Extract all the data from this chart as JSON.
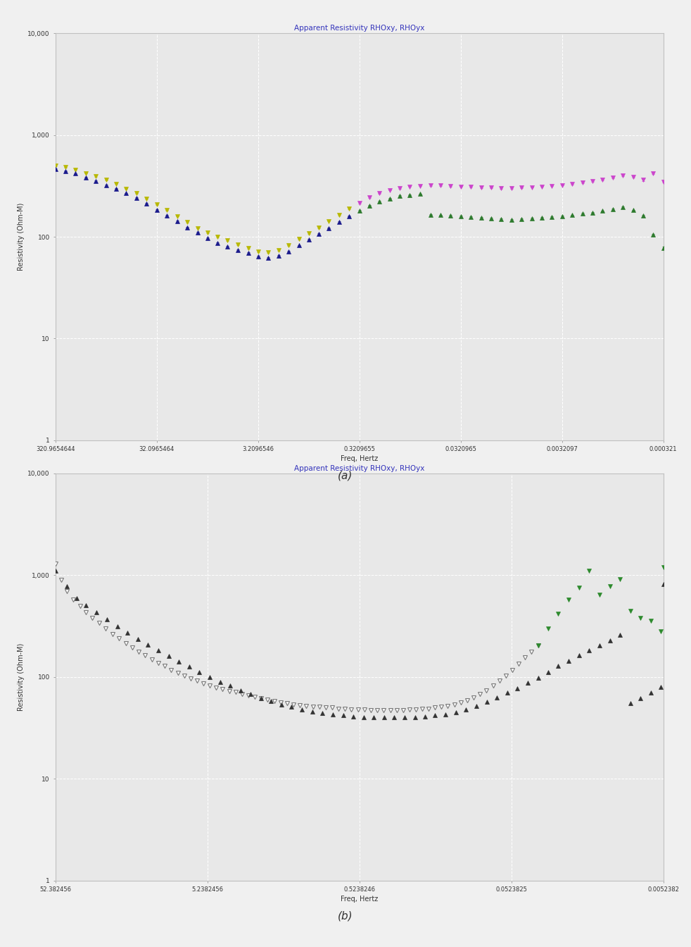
{
  "panel_a": {
    "title": "Apparent Resistivity RHOxy, RHOyx",
    "xlabel": "Freq, Hertz",
    "ylabel": "Resistivity (Ohm-M)",
    "xlim_log": [
      0.000321,
      320.9654644
    ],
    "ylim_log": [
      1,
      10000
    ],
    "xticks": [
      320.9654644,
      32.0965464,
      3.2096546,
      0.3209655,
      0.0320965,
      0.0032097,
      0.000321
    ],
    "xtick_labels": [
      "320.9654644",
      "32.0965464",
      "3.2096546",
      "0.3209655",
      "0.0320965",
      "0.0032097",
      "0.000321"
    ],
    "yticks": [
      1,
      10,
      100,
      1000,
      10000
    ],
    "ytick_labels": [
      "1",
      "10",
      "100",
      "1,000",
      "10,000"
    ],
    "freq_a": [
      320.9654644,
      256.0,
      203.0,
      161.0,
      128.0,
      101.0,
      80.6,
      64.0,
      50.8,
      40.3,
      32.0,
      25.4,
      20.2,
      16.0,
      12.7,
      10.1,
      8.0,
      6.4,
      5.1,
      4.0,
      3.2,
      2.55,
      2.02,
      1.61,
      1.27,
      1.01,
      0.806,
      0.64,
      0.508,
      0.403,
      0.3209655,
      0.256,
      0.203,
      0.161,
      0.128,
      0.102,
      0.0806,
      0.064,
      0.0508,
      0.0403,
      0.0320965,
      0.0255,
      0.0202,
      0.01606,
      0.01274,
      0.01012,
      0.00804,
      0.00639,
      0.00508,
      0.00403,
      0.0032097,
      0.00255,
      0.00202,
      0.001606,
      0.001274,
      0.001012,
      0.000804,
      0.00064,
      0.000508,
      0.000403,
      0.000321
    ],
    "rho_xy_left": [
      500,
      482,
      456,
      422,
      393,
      362,
      332,
      297,
      267,
      237,
      207,
      182,
      160,
      140,
      122,
      110,
      100,
      92,
      84,
      78,
      72,
      70,
      74,
      82,
      95,
      108,
      123,
      143,
      163,
      188
    ],
    "rho_yx_left": [
      462,
      442,
      417,
      382,
      352,
      320,
      297,
      267,
      240,
      212,
      184,
      162,
      142,
      124,
      110,
      97,
      87,
      80,
      74,
      69,
      64,
      62,
      65,
      72,
      82,
      94,
      107,
      122,
      140,
      160
    ],
    "freq_left": [
      320.9654644,
      256.0,
      203.0,
      161.0,
      128.0,
      101.0,
      80.6,
      64.0,
      50.8,
      40.3,
      32.0,
      25.4,
      20.2,
      16.0,
      12.7,
      10.1,
      8.0,
      6.4,
      5.1,
      4.0,
      3.2,
      2.55,
      2.02,
      1.61,
      1.27,
      1.01,
      0.806,
      0.64,
      0.508,
      0.403
    ],
    "rho_xy_right": [
      214,
      243,
      267,
      288,
      302,
      312,
      317,
      320,
      319,
      316,
      312,
      309,
      306,
      303,
      301,
      301,
      303,
      307,
      312,
      317,
      322,
      332,
      342,
      352,
      362,
      382,
      402,
      390,
      362,
      420,
      345
    ],
    "rho_yx_right": [
      180,
      203,
      221,
      238,
      251,
      258,
      263,
      165,
      163,
      161,
      159,
      156,
      153,
      151,
      149,
      147,
      149,
      151,
      153,
      156,
      159,
      163,
      169,
      173,
      179,
      186,
      196,
      182,
      162,
      105,
      78
    ],
    "freq_right": [
      0.3209655,
      0.256,
      0.203,
      0.161,
      0.128,
      0.102,
      0.0806,
      0.064,
      0.0508,
      0.0403,
      0.0320965,
      0.0255,
      0.0202,
      0.01606,
      0.01274,
      0.01012,
      0.00804,
      0.00639,
      0.00508,
      0.00403,
      0.0032097,
      0.00255,
      0.00202,
      0.001606,
      0.001274,
      0.001012,
      0.000804,
      0.00064,
      0.000508,
      0.000403,
      0.000321
    ],
    "err_xy_left": [
      20,
      18,
      17,
      16,
      15,
      14,
      13,
      12,
      11,
      10,
      9,
      8,
      8,
      7,
      6,
      6,
      5,
      5,
      4,
      4,
      4,
      4,
      4,
      4,
      5,
      5,
      6,
      7,
      8,
      9
    ],
    "err_yx_left": [
      18,
      17,
      16,
      15,
      14,
      13,
      12,
      11,
      10,
      9,
      8,
      7,
      7,
      6,
      6,
      5,
      5,
      4,
      4,
      4,
      3,
      3,
      3,
      4,
      4,
      5,
      5,
      6,
      7,
      7
    ],
    "err_xy_right": [
      10,
      11,
      12,
      13,
      14,
      14,
      14,
      14,
      14,
      14,
      14,
      13,
      13,
      13,
      13,
      13,
      13,
      13,
      13,
      14,
      14,
      15,
      15,
      16,
      16,
      17,
      18,
      20,
      25,
      30,
      15
    ],
    "err_yx_right": [
      8,
      9,
      10,
      10,
      11,
      11,
      11,
      7,
      7,
      7,
      7,
      7,
      7,
      7,
      6,
      6,
      6,
      7,
      7,
      7,
      7,
      7,
      8,
      8,
      8,
      8,
      9,
      9,
      8,
      7,
      5
    ],
    "color_xy_left": "#b8b800",
    "color_yx_left": "#1a1a8c",
    "color_xy_right": "#cc44cc",
    "color_yx_right": "#2d7a2d",
    "marker_xy": "v",
    "marker_yx": "^",
    "markersize": 4
  },
  "panel_b": {
    "title": "Apparent Resistivity RHOxy, RHOyx",
    "xlabel": "Freq, Hertz",
    "ylabel": "Resistivity (Ohm-M)",
    "xlim_log": [
      0.0052382,
      52.382456
    ],
    "ylim_log": [
      1,
      10000
    ],
    "xticks": [
      52.382456,
      5.2382456,
      0.5238246,
      0.0523825,
      0.0052382
    ],
    "xtick_labels": [
      "52.382456",
      "5.2382456",
      "0.5238246",
      "0.0523825",
      "0.0052382"
    ],
    "yticks": [
      1,
      10,
      100,
      1000,
      10000
    ],
    "ytick_labels": [
      "1",
      "10",
      "100",
      "1,000",
      "10,000"
    ],
    "freq_b_open": [
      52.382456,
      48.0,
      44.0,
      40.0,
      36.0,
      33.0,
      30.0,
      27.0,
      24.5,
      22.0,
      20.0,
      18.0,
      16.3,
      14.8,
      13.4,
      12.1,
      11.0,
      10.0,
      9.05,
      8.2,
      7.44,
      6.75,
      6.12,
      5.55,
      5.04,
      4.57,
      4.15,
      3.76,
      3.41,
      3.1,
      2.81,
      2.55,
      2.31,
      2.1,
      1.9,
      1.72,
      1.56,
      1.42,
      1.29,
      1.17,
      1.06,
      0.96,
      0.87,
      0.79,
      0.717,
      0.651,
      0.59,
      0.535,
      0.485,
      0.44,
      0.399,
      0.362,
      0.328,
      0.298,
      0.27,
      0.245,
      0.222,
      0.202,
      0.183,
      0.166,
      0.151,
      0.137,
      0.124,
      0.113,
      0.102,
      0.0927,
      0.0841,
      0.0763,
      0.0692,
      0.0628,
      0.057,
      0.0517,
      0.0469,
      0.0425,
      0.0386,
      0.035
    ],
    "rho_b_open": [
      1300,
      900,
      700,
      580,
      500,
      430,
      380,
      340,
      300,
      265,
      240,
      215,
      195,
      178,
      163,
      150,
      138,
      128,
      118,
      110,
      103,
      97,
      92,
      87,
      83,
      79,
      76,
      73,
      71,
      68,
      66,
      64,
      62,
      60,
      58,
      56,
      55,
      54,
      53,
      52,
      51,
      51,
      50,
      50,
      49,
      49,
      48,
      48,
      48,
      47,
      47,
      47,
      47,
      47,
      47,
      48,
      48,
      49,
      49,
      50,
      51,
      52,
      54,
      56,
      59,
      63,
      68,
      74,
      82,
      92,
      103,
      118,
      135,
      155,
      178,
      205
    ],
    "freq_b_dark": [
      52.382456,
      44.0,
      38.0,
      33.0,
      28.0,
      24.0,
      20.5,
      17.5,
      15.0,
      12.9,
      11.0,
      9.42,
      8.06,
      6.9,
      5.9,
      5.05,
      4.32,
      3.7,
      3.17,
      2.71,
      2.32,
      1.99,
      1.7,
      1.46,
      1.25,
      1.07,
      0.914,
      0.783,
      0.67,
      0.574,
      0.491,
      0.421,
      0.36,
      0.308,
      0.264,
      0.226,
      0.193,
      0.166,
      0.142,
      0.121,
      0.104,
      0.0889,
      0.0761,
      0.0652,
      0.0558,
      0.0478,
      0.0409,
      0.035,
      0.03,
      0.0257,
      0.022,
      0.0188,
      0.0161,
      0.0138,
      0.0118,
      0.0101,
      0.00866,
      0.00741,
      0.00635,
      0.00543,
      0.00465,
      0.00398,
      0.00341,
      0.00292,
      0.0025,
      0.0052382
    ],
    "rho_b_dark": [
      1100,
      780,
      600,
      510,
      435,
      370,
      315,
      272,
      238,
      208,
      183,
      161,
      142,
      126,
      112,
      100,
      90,
      82,
      74,
      68,
      62,
      58,
      54,
      51,
      48,
      46,
      44,
      43,
      42,
      41,
      40,
      40,
      40,
      40,
      40,
      40,
      41,
      42,
      43,
      45,
      48,
      52,
      57,
      63,
      70,
      78,
      88,
      99,
      112,
      128,
      145,
      163,
      183,
      205,
      230,
      258,
      55,
      62,
      70,
      80,
      92,
      107,
      125,
      145,
      820,
      820
    ],
    "freq_b_green": [
      0.035,
      0.03,
      0.0257,
      0.022,
      0.0188,
      0.0161,
      0.0138,
      0.0118,
      0.0101,
      0.00866,
      0.00741,
      0.00635,
      0.00543,
      0.00465,
      0.00398,
      0.00341,
      0.00292,
      0.0025,
      0.0052382
    ],
    "rho_b_green": [
      205,
      300,
      420,
      580,
      760,
      1100,
      650,
      780,
      910,
      450,
      380,
      360,
      280,
      370,
      380,
      320,
      430,
      480,
      1200
    ],
    "color_open": "#777777",
    "color_dark": "#333333",
    "color_green": "#2d8a2d",
    "markersize": 4
  },
  "fig_bg_color": "#f0f0f0",
  "plot_bg_color": "#e8e8e8",
  "grid_color": "#ffffff",
  "title_color": "#3333bb",
  "tick_label_color": "#333333",
  "axis_label_color": "#333333",
  "border_color": "#c0c0c0"
}
